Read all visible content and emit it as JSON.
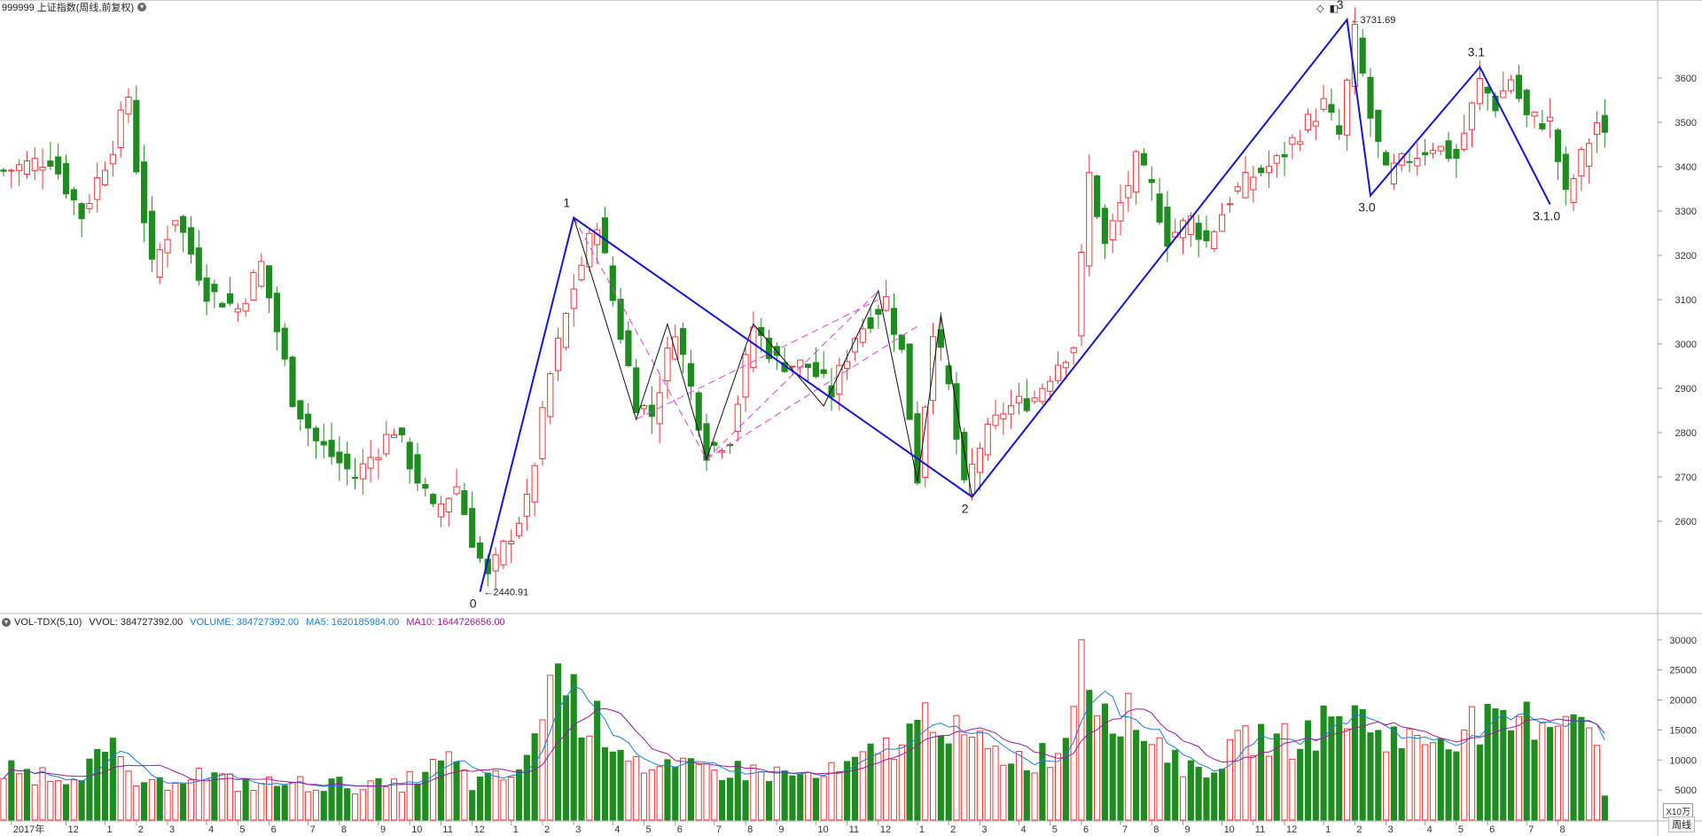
{
  "header": {
    "title": "999999 上证指数(周线,前复权)",
    "menu_icon": "chevron-down-icon",
    "right_icons": [
      "diamond-icon",
      "panel-toggle-icon"
    ]
  },
  "volume_header": {
    "indicator": "VOL-TDX(5,10)",
    "vvol": "VVOL: 384727392.00",
    "volume": "VOLUME: 384727392.00",
    "ma5": "MA5: 1620185984.00",
    "ma10": "MA10: 1644726656.00",
    "colors": {
      "volume": "#1a7fd4",
      "ma5": "#1a7fd4",
      "ma10": "#9b1a9b"
    }
  },
  "footer": {
    "period_button": "周线",
    "unit_label": "X10万"
  },
  "colors": {
    "up": "#e8393b",
    "down": "#1e8c1e",
    "wave": "#1414d4",
    "subwave": "#111111",
    "fib": "#e040e0",
    "ma5": "#1a7fd4",
    "ma10": "#9b1a9b",
    "grid": "#cccccc"
  },
  "chart_data": [
    {
      "type": "candlestick",
      "title": "999999 上证指数(周线,前复权)",
      "yticks": [
        2600,
        2700,
        2800,
        2900,
        3000,
        3100,
        3200,
        3300,
        3400,
        3500,
        3600
      ],
      "ylim": [
        2440,
        3730
      ],
      "xlim": [
        0,
        212
      ],
      "x_tick_labels": [
        {
          "label": "2017年",
          "i": 1
        },
        {
          "label": "12",
          "i": 8
        },
        {
          "label": "1",
          "i": 13
        },
        {
          "label": "2",
          "i": 17
        },
        {
          "label": "3",
          "i": 21
        },
        {
          "label": "4",
          "i": 26
        },
        {
          "label": "5",
          "i": 30
        },
        {
          "label": "6",
          "i": 34
        },
        {
          "label": "7",
          "i": 39
        },
        {
          "label": "8",
          "i": 43
        },
        {
          "label": "9",
          "i": 48
        },
        {
          "label": "10",
          "i": 52
        },
        {
          "label": "11",
          "i": 56
        },
        {
          "label": "12",
          "i": 60
        },
        {
          "label": "1",
          "i": 65
        },
        {
          "label": "2",
          "i": 69
        },
        {
          "label": "3",
          "i": 73
        },
        {
          "label": "4",
          "i": 78
        },
        {
          "label": "5",
          "i": 82
        },
        {
          "label": "6",
          "i": 86
        },
        {
          "label": "7",
          "i": 91
        },
        {
          "label": "8",
          "i": 95
        },
        {
          "label": "9",
          "i": 99
        },
        {
          "label": "10",
          "i": 104
        },
        {
          "label": "11",
          "i": 108
        },
        {
          "label": "12",
          "i": 112
        },
        {
          "label": "1",
          "i": 117
        },
        {
          "label": "2",
          "i": 121
        },
        {
          "label": "3",
          "i": 125
        },
        {
          "label": "4",
          "i": 130
        },
        {
          "label": "5",
          "i": 134
        },
        {
          "label": "6",
          "i": 138
        },
        {
          "label": "7",
          "i": 143
        },
        {
          "label": "8",
          "i": 147
        },
        {
          "label": "9",
          "i": 151
        },
        {
          "label": "10",
          "i": 156
        },
        {
          "label": "11",
          "i": 160
        },
        {
          "label": "12",
          "i": 164
        },
        {
          "label": "1",
          "i": 169
        },
        {
          "label": "2",
          "i": 173
        },
        {
          "label": "3",
          "i": 177
        },
        {
          "label": "4",
          "i": 182
        },
        {
          "label": "5",
          "i": 186
        },
        {
          "label": "6",
          "i": 190
        },
        {
          "label": "7",
          "i": 195
        },
        {
          "label": "8",
          "i": 199
        }
      ],
      "anchors": [
        {
          "i": 0,
          "c": 3390
        },
        {
          "i": 6,
          "c": 3420
        },
        {
          "i": 10,
          "c": 3290
        },
        {
          "i": 14,
          "c": 3450
        },
        {
          "i": 16,
          "c": 3560
        },
        {
          "i": 17,
          "c": 3400
        },
        {
          "i": 19,
          "c": 3170
        },
        {
          "i": 22,
          "c": 3290
        },
        {
          "i": 26,
          "c": 3120
        },
        {
          "i": 30,
          "c": 3080
        },
        {
          "i": 33,
          "c": 3180
        },
        {
          "i": 37,
          "c": 2880
        },
        {
          "i": 40,
          "c": 2780
        },
        {
          "i": 45,
          "c": 2700
        },
        {
          "i": 50,
          "c": 2810
        },
        {
          "i": 55,
          "c": 2620
        },
        {
          "i": 58,
          "c": 2680
        },
        {
          "i": 60,
          "c": 2560
        },
        {
          "i": 62,
          "c": 2470
        },
        {
          "i": 64,
          "c": 2540
        },
        {
          "i": 67,
          "c": 2640
        },
        {
          "i": 70,
          "c": 2930
        },
        {
          "i": 73,
          "c": 3130
        },
        {
          "i": 76,
          "c": 3280
        },
        {
          "i": 78,
          "c": 3100
        },
        {
          "i": 81,
          "c": 2870
        },
        {
          "i": 83,
          "c": 2840
        },
        {
          "i": 86,
          "c": 3040
        },
        {
          "i": 90,
          "c": 2760
        },
        {
          "i": 93,
          "c": 2790
        },
        {
          "i": 96,
          "c": 3040
        },
        {
          "i": 99,
          "c": 2960
        },
        {
          "i": 103,
          "c": 2950
        },
        {
          "i": 106,
          "c": 2890
        },
        {
          "i": 109,
          "c": 3020
        },
        {
          "i": 113,
          "c": 3100
        },
        {
          "i": 115,
          "c": 2980
        },
        {
          "i": 117,
          "c": 2700
        },
        {
          "i": 119,
          "c": 3040
        },
        {
          "i": 121,
          "c": 2900
        },
        {
          "i": 123,
          "c": 2670
        },
        {
          "i": 125,
          "c": 2770
        },
        {
          "i": 128,
          "c": 2850
        },
        {
          "i": 132,
          "c": 2880
        },
        {
          "i": 135,
          "c": 2960
        },
        {
          "i": 137,
          "c": 3000
        },
        {
          "i": 139,
          "c": 3380
        },
        {
          "i": 141,
          "c": 3220
        },
        {
          "i": 145,
          "c": 3410
        },
        {
          "i": 147,
          "c": 3350
        },
        {
          "i": 149,
          "c": 3240
        },
        {
          "i": 152,
          "c": 3280
        },
        {
          "i": 154,
          "c": 3230
        },
        {
          "i": 157,
          "c": 3330
        },
        {
          "i": 160,
          "c": 3380
        },
        {
          "i": 163,
          "c": 3410
        },
        {
          "i": 166,
          "c": 3480
        },
        {
          "i": 169,
          "c": 3540
        },
        {
          "i": 171,
          "c": 3470
        },
        {
          "i": 173,
          "c": 3700
        },
        {
          "i": 175,
          "c": 3510
        },
        {
          "i": 177,
          "c": 3380
        },
        {
          "i": 180,
          "c": 3420
        },
        {
          "i": 183,
          "c": 3450
        },
        {
          "i": 186,
          "c": 3420
        },
        {
          "i": 189,
          "c": 3590
        },
        {
          "i": 191,
          "c": 3540
        },
        {
          "i": 193,
          "c": 3600
        },
        {
          "i": 195,
          "c": 3510
        },
        {
          "i": 198,
          "c": 3500
        },
        {
          "i": 200,
          "c": 3330
        },
        {
          "i": 202,
          "c": 3420
        },
        {
          "i": 204,
          "c": 3500
        },
        {
          "i": 205,
          "c": 3460
        }
      ],
      "wave_points": [
        {
          "label": "0",
          "i": 61,
          "v": 2440.91,
          "pos": "below"
        },
        {
          "label": "1",
          "i": 73,
          "v": 3285,
          "pos": "above"
        },
        {
          "label": "2",
          "i": 124,
          "v": 2655,
          "pos": "below"
        },
        {
          "label": "3",
          "i": 172,
          "v": 3731.69,
          "pos": "above"
        },
        {
          "label": "3.0",
          "i": 175,
          "v": 3335,
          "pos": "below"
        },
        {
          "label": "3.1",
          "i": 189,
          "v": 3625,
          "pos": "above"
        },
        {
          "label": "3.1.0",
          "i": 198,
          "v": 3315,
          "pos": "below"
        }
      ],
      "annotations": [
        {
          "text": "←2440.91",
          "i": 61,
          "v": 2440.91
        },
        {
          "text": "←3731.69",
          "i": 172,
          "v": 3731.69
        }
      ],
      "subwaves": [
        {
          "i": 73,
          "v": 3285
        },
        {
          "i": 81,
          "v": 2830
        },
        {
          "i": 85,
          "v": 3045
        },
        {
          "i": 90,
          "v": 2740
        },
        {
          "i": 96,
          "v": 3045
        },
        {
          "i": 105,
          "v": 2860
        },
        {
          "i": 112,
          "v": 3120
        },
        {
          "i": 117,
          "v": 2690
        },
        {
          "i": 120,
          "v": 3065
        },
        {
          "i": 124,
          "v": 2655
        }
      ],
      "fib_lines": [
        {
          "from": {
            "i": 73,
            "v": 3285
          },
          "to": {
            "i": 90,
            "v": 2740
          }
        },
        {
          "from": {
            "i": 90,
            "v": 2740
          },
          "to": {
            "i": 112,
            "v": 3120
          }
        },
        {
          "from": {
            "i": 90,
            "v": 2740
          },
          "to": {
            "i": 117,
            "v": 3040
          }
        },
        {
          "from": {
            "i": 81,
            "v": 2830
          },
          "to": {
            "i": 112,
            "v": 3100
          }
        }
      ]
    },
    {
      "type": "bar",
      "title": "VOL-TDX(5,10)",
      "yticks": [
        5000,
        10000,
        15000,
        20000,
        25000,
        30000
      ],
      "ylim": [
        0,
        31000
      ],
      "unit": "X10万",
      "volume_anchors": [
        {
          "i": 0,
          "v": 8000
        },
        {
          "i": 8,
          "v": 7500
        },
        {
          "i": 14,
          "v": 11000
        },
        {
          "i": 18,
          "v": 5000
        },
        {
          "i": 24,
          "v": 8000
        },
        {
          "i": 30,
          "v": 6000
        },
        {
          "i": 40,
          "v": 6000
        },
        {
          "i": 50,
          "v": 5500
        },
        {
          "i": 55,
          "v": 8500
        },
        {
          "i": 57,
          "v": 10000
        },
        {
          "i": 60,
          "v": 6000
        },
        {
          "i": 64,
          "v": 7000
        },
        {
          "i": 67,
          "v": 9000
        },
        {
          "i": 69,
          "v": 20000
        },
        {
          "i": 71,
          "v": 26000
        },
        {
          "i": 74,
          "v": 18000
        },
        {
          "i": 78,
          "v": 14000
        },
        {
          "i": 83,
          "v": 8000
        },
        {
          "i": 90,
          "v": 8500
        },
        {
          "i": 97,
          "v": 8000
        },
        {
          "i": 104,
          "v": 7000
        },
        {
          "i": 108,
          "v": 8500
        },
        {
          "i": 113,
          "v": 12000
        },
        {
          "i": 117,
          "v": 15000
        },
        {
          "i": 119,
          "v": 19000
        },
        {
          "i": 122,
          "v": 14000
        },
        {
          "i": 127,
          "v": 11000
        },
        {
          "i": 132,
          "v": 10000
        },
        {
          "i": 136,
          "v": 13000
        },
        {
          "i": 138,
          "v": 30000
        },
        {
          "i": 140,
          "v": 21000
        },
        {
          "i": 144,
          "v": 17000
        },
        {
          "i": 148,
          "v": 13000
        },
        {
          "i": 152,
          "v": 8000
        },
        {
          "i": 156,
          "v": 10000
        },
        {
          "i": 160,
          "v": 14000
        },
        {
          "i": 164,
          "v": 13000
        },
        {
          "i": 168,
          "v": 15000
        },
        {
          "i": 172,
          "v": 18000
        },
        {
          "i": 176,
          "v": 15000
        },
        {
          "i": 180,
          "v": 13000
        },
        {
          "i": 184,
          "v": 14000
        },
        {
          "i": 188,
          "v": 16000
        },
        {
          "i": 192,
          "v": 15000
        },
        {
          "i": 196,
          "v": 17000
        },
        {
          "i": 200,
          "v": 18000
        },
        {
          "i": 203,
          "v": 19000
        },
        {
          "i": 205,
          "v": 4000
        }
      ]
    }
  ]
}
